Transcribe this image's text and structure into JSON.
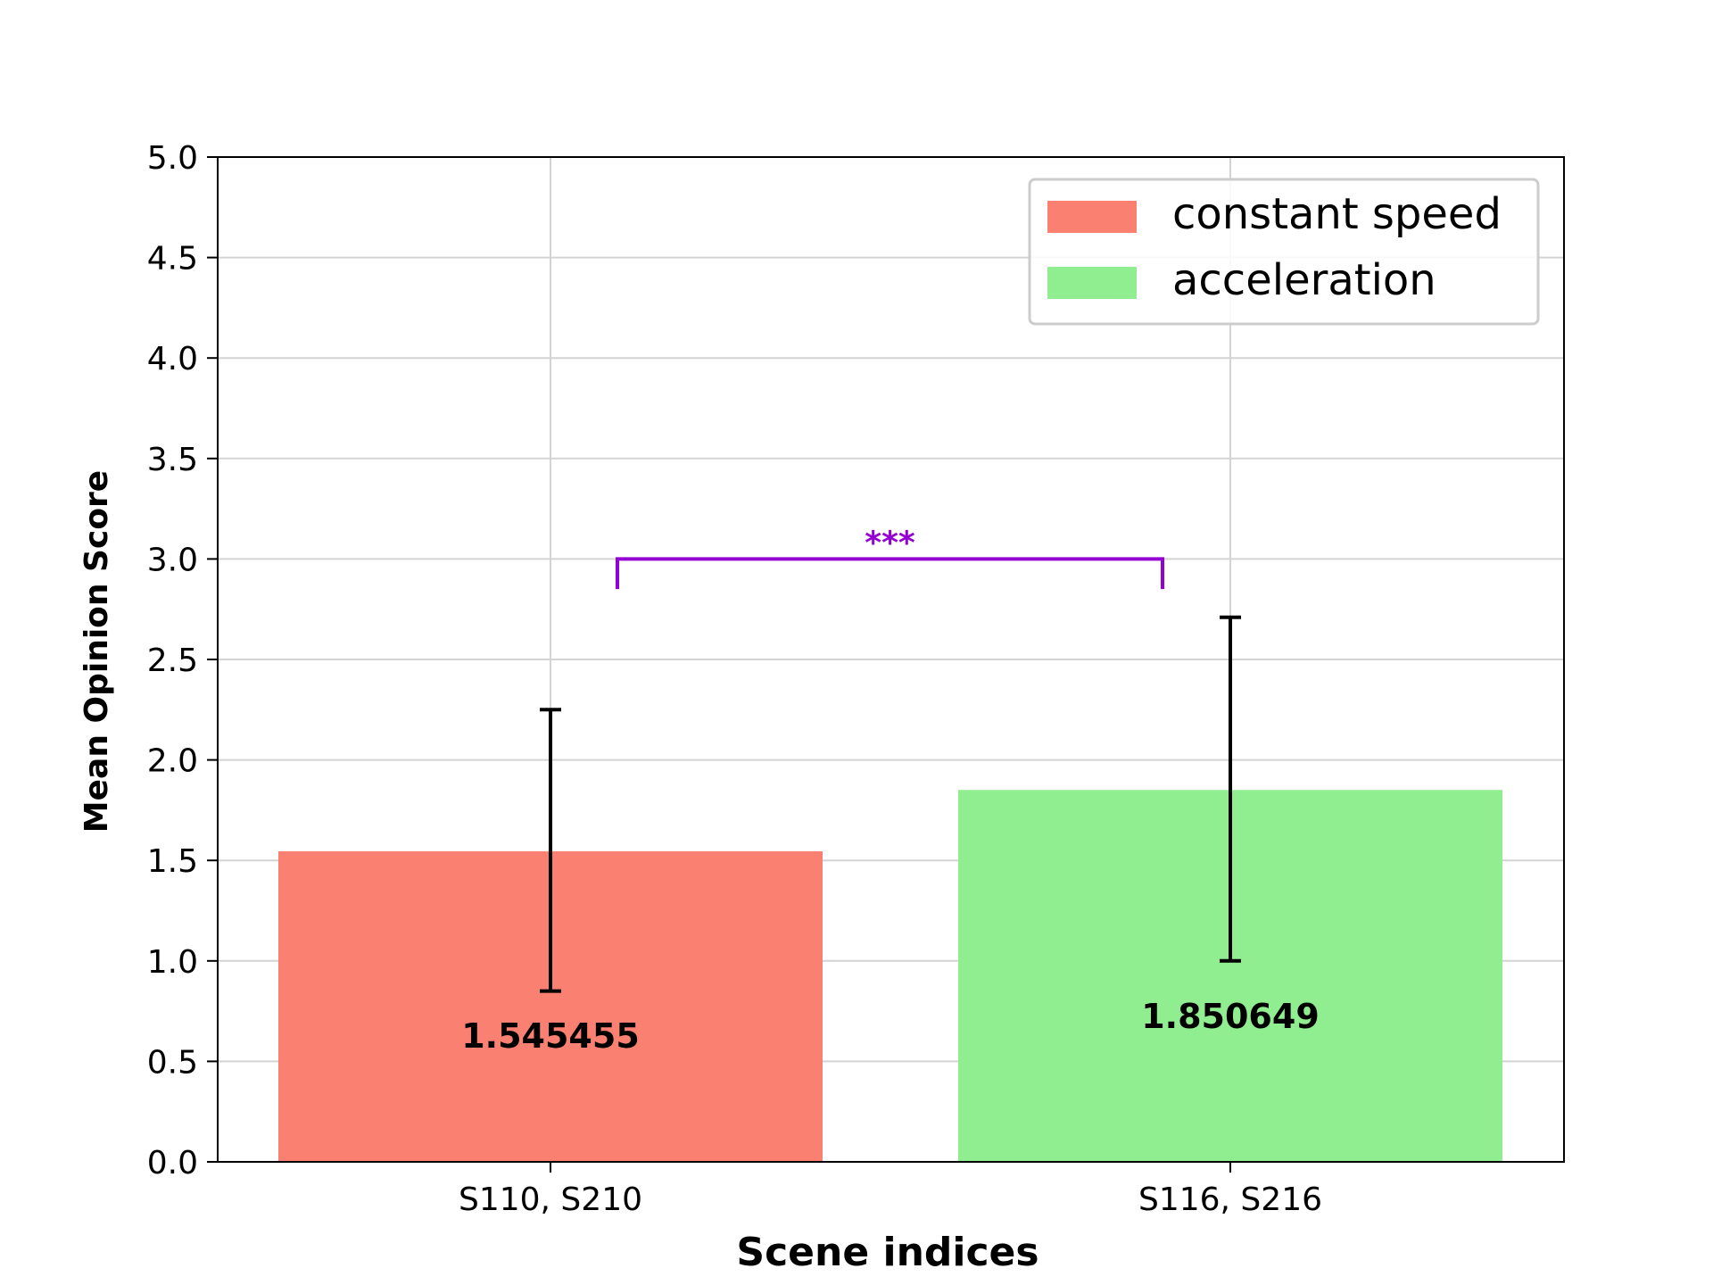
{
  "chart_data": {
    "type": "bar",
    "title": "",
    "xlabel": "Scene indices",
    "ylabel": "Mean Opinion Score",
    "categories": [
      "S110, S210",
      "S116, S216"
    ],
    "series": [
      {
        "name": "constant speed",
        "color": "#fa8072"
      },
      {
        "name": "acceleration",
        "color": "#90ee90"
      }
    ],
    "values": [
      1.545455,
      1.850649
    ],
    "value_labels": [
      "1.545455",
      "1.850649"
    ],
    "error_bars": [
      {
        "low": 0.85,
        "high": 2.25
      },
      {
        "low": 1.0,
        "high": 2.71
      }
    ],
    "ylim": [
      0,
      5
    ],
    "yticks": [
      "0.0",
      "0.5",
      "1.0",
      "1.5",
      "2.0",
      "2.5",
      "3.0",
      "3.5",
      "4.0",
      "4.5",
      "5.0"
    ],
    "ytick_values": [
      0,
      0.5,
      1,
      1.5,
      2,
      2.5,
      3,
      3.5,
      4,
      4.5,
      5
    ],
    "grid": true,
    "legend_position": "top-right",
    "significance": {
      "label": "***",
      "color": "#9400d3",
      "y": 3.0,
      "y_drop": 2.85
    }
  }
}
